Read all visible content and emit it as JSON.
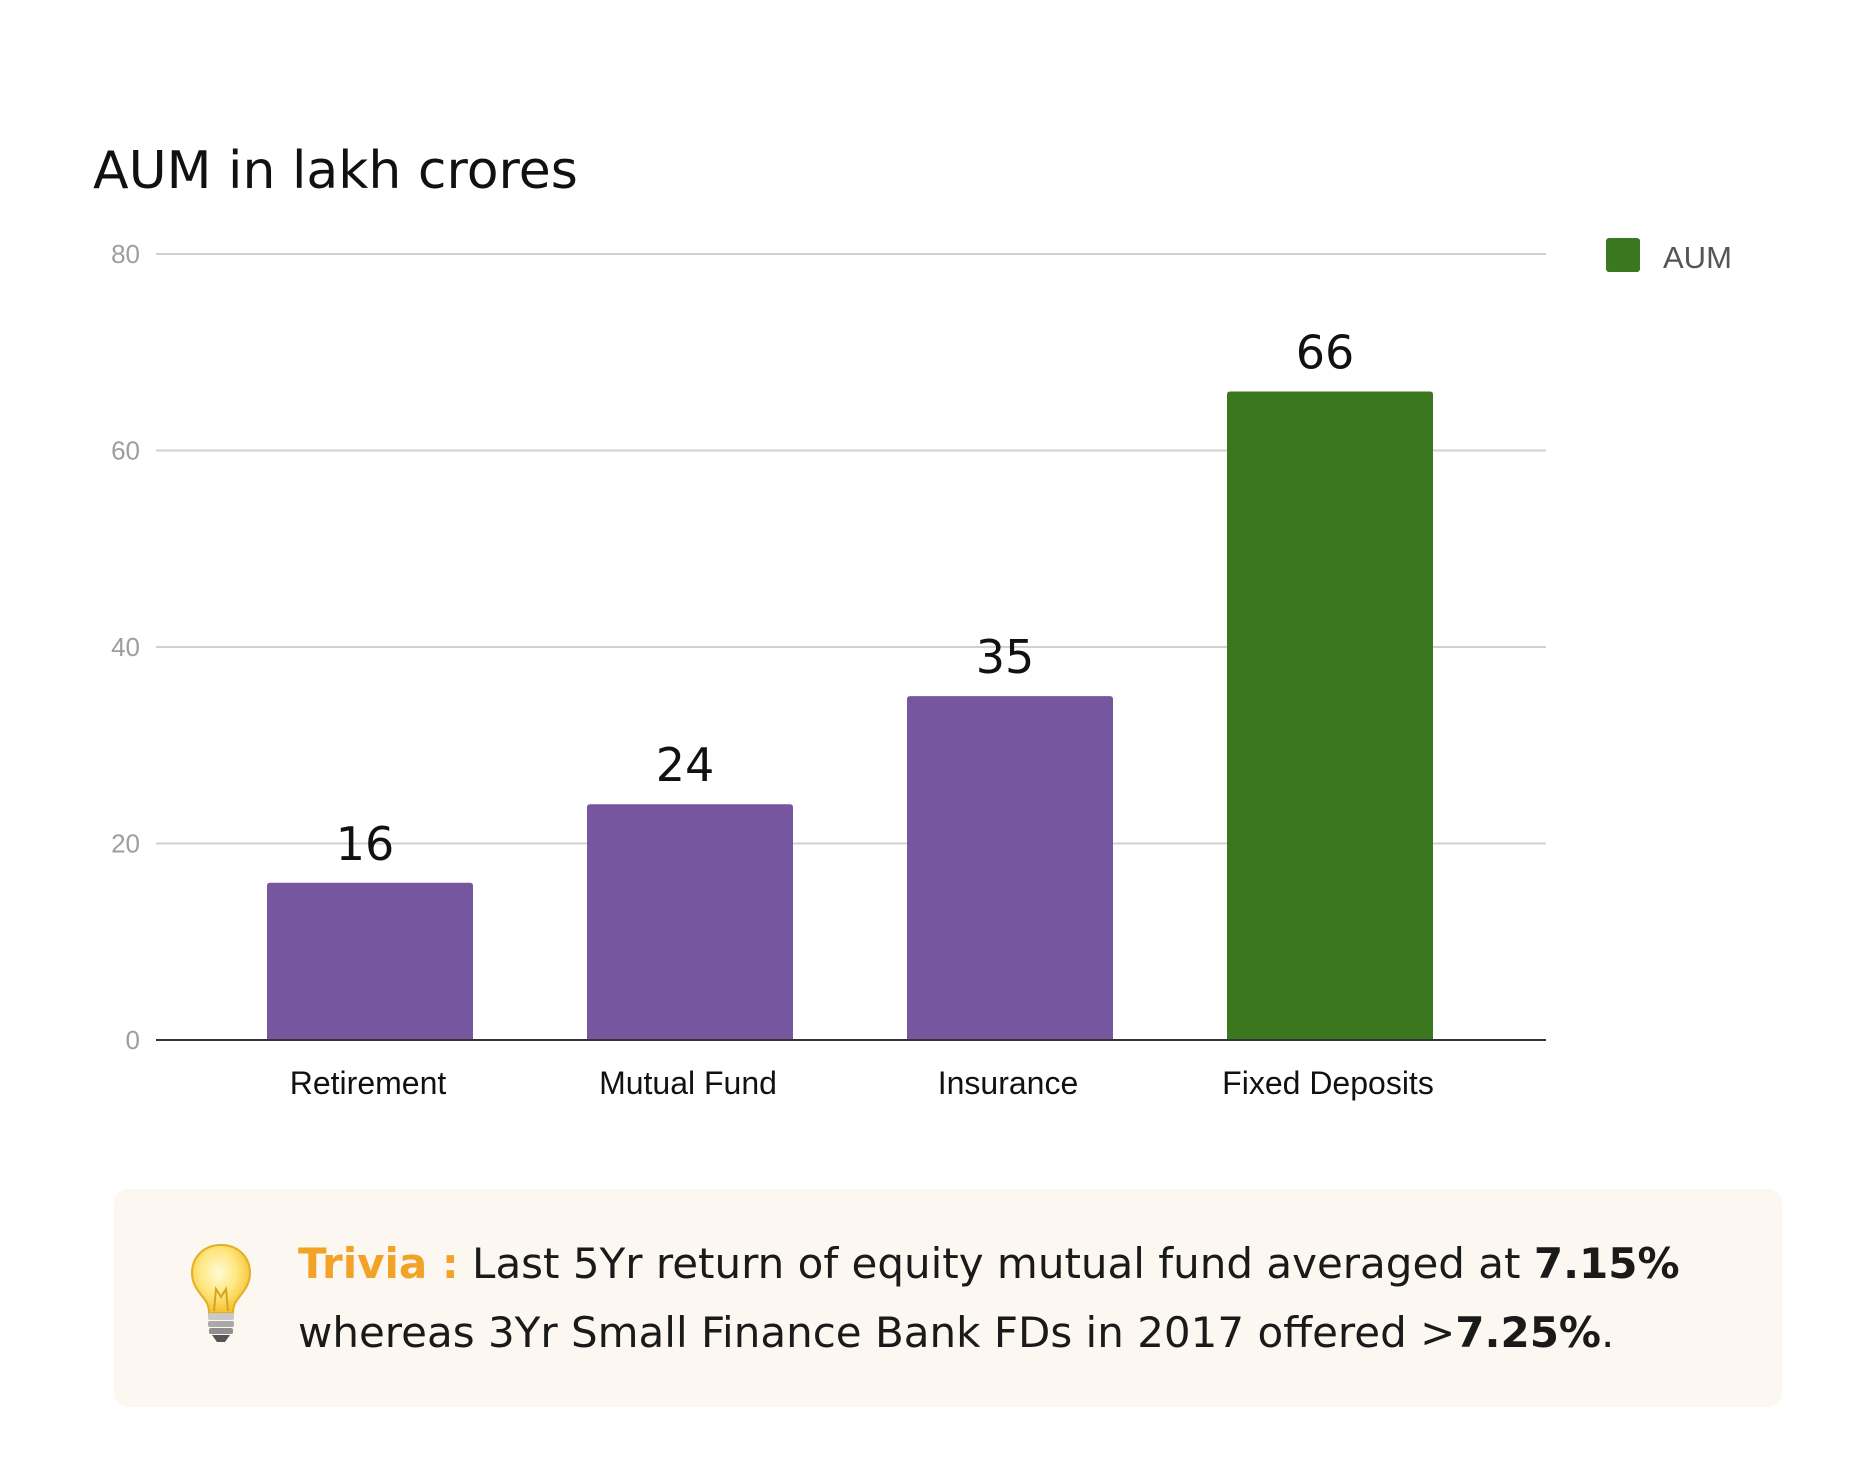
{
  "chart_data": {
    "type": "bar",
    "title": "AUM in lakh crores",
    "categories": [
      "Retirement",
      "Mutual Fund",
      "Insurance",
      "Fixed Deposits"
    ],
    "series": [
      {
        "name": "AUM",
        "values": [
          16,
          24,
          35,
          66
        ],
        "colors": [
          "#76569f",
          "#76569f",
          "#76569f",
          "#3a771e"
        ]
      }
    ],
    "data_labels": [
      "16",
      "24",
      "35",
      "66"
    ],
    "ylim": [
      0,
      80
    ],
    "y_ticks": [
      0,
      20,
      40,
      60,
      80
    ],
    "xlabel": "",
    "ylabel": "",
    "grid": true,
    "legend": {
      "placement": "top-right",
      "label": "AUM",
      "color": "#3a771e"
    }
  },
  "trivia": {
    "label": "Trivia :",
    "text_1": " Last 5Yr return of equity mutual fund averaged at ",
    "value_1": "7.15%",
    "text_2": " whereas 3Yr Small Finance Bank FDs in 2017 offered >",
    "value_2": "7.25%",
    "text_3": ".",
    "icon": "lightbulb-icon"
  },
  "colors": {
    "label_accent": "#f2a227",
    "box_background": "#fdf7f1",
    "gridline": "#d0d0d0",
    "axis": "#333333"
  }
}
